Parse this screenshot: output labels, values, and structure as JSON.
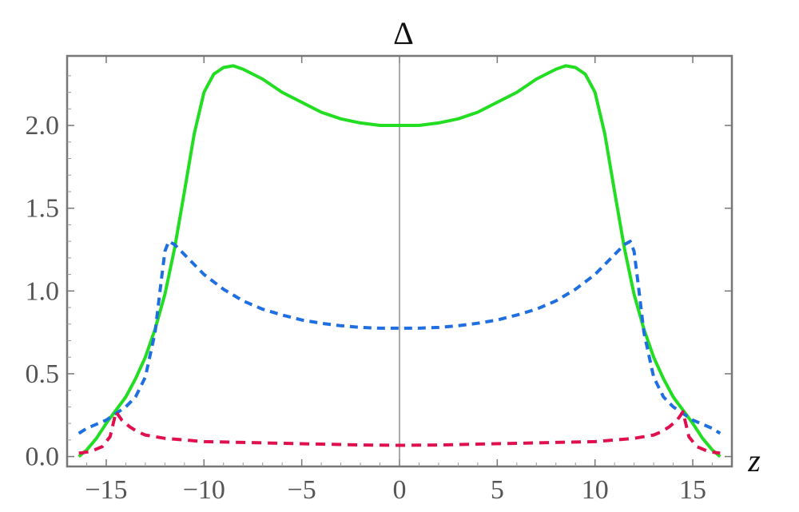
{
  "chart_data": {
    "type": "line",
    "title": "",
    "xlabel": "z",
    "ylabel": "Δ",
    "xlim": [
      -17,
      17
    ],
    "ylim": [
      -0.06,
      2.42
    ],
    "grid": false,
    "x_ticks": [
      -15,
      -10,
      -5,
      0,
      5,
      10,
      15
    ],
    "x_tick_labels": [
      "−15",
      "−10",
      "−5",
      "0",
      "5",
      "10",
      "15"
    ],
    "y_ticks": [
      0.0,
      0.5,
      1.0,
      1.5,
      2.0
    ],
    "y_tick_labels": [
      "0.0",
      "0.5",
      "1.0",
      "1.5",
      "2.0"
    ],
    "series": [
      {
        "style": "solid",
        "color": "#22dd22",
        "points": [
          [
            -16.4,
            0.0
          ],
          [
            -16.0,
            0.04
          ],
          [
            -15.5,
            0.11
          ],
          [
            -15.0,
            0.2
          ],
          [
            -14.5,
            0.28
          ],
          [
            -14.0,
            0.36
          ],
          [
            -13.5,
            0.47
          ],
          [
            -13.0,
            0.6
          ],
          [
            -12.5,
            0.77
          ],
          [
            -12.0,
            0.98
          ],
          [
            -11.5,
            1.26
          ],
          [
            -11.0,
            1.6
          ],
          [
            -10.5,
            1.95
          ],
          [
            -10.0,
            2.2
          ],
          [
            -9.5,
            2.31
          ],
          [
            -9.0,
            2.35
          ],
          [
            -8.5,
            2.36
          ],
          [
            -8.0,
            2.34
          ],
          [
            -7.0,
            2.28
          ],
          [
            -6.0,
            2.2
          ],
          [
            -5.0,
            2.14
          ],
          [
            -4.0,
            2.08
          ],
          [
            -3.0,
            2.04
          ],
          [
            -2.0,
            2.015
          ],
          [
            -1.0,
            2.0
          ],
          [
            0.0,
            2.0
          ],
          [
            1.0,
            2.0
          ],
          [
            2.0,
            2.015
          ],
          [
            3.0,
            2.04
          ],
          [
            4.0,
            2.08
          ],
          [
            5.0,
            2.14
          ],
          [
            6.0,
            2.2
          ],
          [
            7.0,
            2.28
          ],
          [
            8.0,
            2.34
          ],
          [
            8.5,
            2.36
          ],
          [
            9.0,
            2.35
          ],
          [
            9.5,
            2.31
          ],
          [
            10.0,
            2.2
          ],
          [
            10.5,
            1.95
          ],
          [
            11.0,
            1.6
          ],
          [
            11.5,
            1.26
          ],
          [
            12.0,
            0.98
          ],
          [
            12.5,
            0.77
          ],
          [
            13.0,
            0.6
          ],
          [
            13.5,
            0.47
          ],
          [
            14.0,
            0.36
          ],
          [
            14.5,
            0.28
          ],
          [
            15.0,
            0.2
          ],
          [
            15.5,
            0.11
          ],
          [
            16.0,
            0.04
          ],
          [
            16.4,
            0.0
          ]
        ]
      },
      {
        "style": "dashed",
        "color": "#1f6fe0",
        "points": [
          [
            -16.4,
            0.14
          ],
          [
            -16.0,
            0.17
          ],
          [
            -15.0,
            0.22
          ],
          [
            -14.0,
            0.3
          ],
          [
            -13.5,
            0.36
          ],
          [
            -13.0,
            0.48
          ],
          [
            -12.5,
            0.75
          ],
          [
            -12.2,
            1.05
          ],
          [
            -12.0,
            1.24
          ],
          [
            -11.8,
            1.3
          ],
          [
            -11.5,
            1.28
          ],
          [
            -11.0,
            1.22
          ],
          [
            -10.0,
            1.1
          ],
          [
            -9.0,
            1.01
          ],
          [
            -8.0,
            0.94
          ],
          [
            -7.0,
            0.89
          ],
          [
            -6.0,
            0.855
          ],
          [
            -5.0,
            0.825
          ],
          [
            -4.0,
            0.805
          ],
          [
            -3.0,
            0.79
          ],
          [
            -2.0,
            0.78
          ],
          [
            -1.0,
            0.775
          ],
          [
            0.0,
            0.775
          ],
          [
            1.0,
            0.775
          ],
          [
            2.0,
            0.78
          ],
          [
            3.0,
            0.79
          ],
          [
            4.0,
            0.805
          ],
          [
            5.0,
            0.825
          ],
          [
            6.0,
            0.855
          ],
          [
            7.0,
            0.89
          ],
          [
            8.0,
            0.94
          ],
          [
            9.0,
            1.01
          ],
          [
            10.0,
            1.1
          ],
          [
            11.0,
            1.22
          ],
          [
            11.5,
            1.28
          ],
          [
            11.8,
            1.3
          ],
          [
            12.0,
            1.24
          ],
          [
            12.2,
            1.05
          ],
          [
            12.5,
            0.75
          ],
          [
            13.0,
            0.48
          ],
          [
            13.5,
            0.36
          ],
          [
            14.0,
            0.3
          ],
          [
            15.0,
            0.22
          ],
          [
            16.0,
            0.17
          ],
          [
            16.4,
            0.14
          ]
        ]
      },
      {
        "style": "dashed",
        "color": "#e0104f",
        "points": [
          [
            -16.4,
            0.02
          ],
          [
            -15.8,
            0.03
          ],
          [
            -15.2,
            0.06
          ],
          [
            -14.8,
            0.12
          ],
          [
            -14.5,
            0.27
          ],
          [
            -14.2,
            0.22
          ],
          [
            -13.8,
            0.18
          ],
          [
            -13.4,
            0.15
          ],
          [
            -13.0,
            0.13
          ],
          [
            -12.5,
            0.12
          ],
          [
            -12.0,
            0.11
          ],
          [
            -11.0,
            0.1
          ],
          [
            -10.0,
            0.09
          ],
          [
            -8.0,
            0.085
          ],
          [
            -6.0,
            0.08
          ],
          [
            -4.0,
            0.075
          ],
          [
            -2.0,
            0.07
          ],
          [
            0.0,
            0.068
          ],
          [
            2.0,
            0.07
          ],
          [
            4.0,
            0.075
          ],
          [
            6.0,
            0.08
          ],
          [
            8.0,
            0.085
          ],
          [
            10.0,
            0.09
          ],
          [
            11.0,
            0.1
          ],
          [
            12.0,
            0.11
          ],
          [
            12.5,
            0.12
          ],
          [
            13.0,
            0.13
          ],
          [
            13.4,
            0.15
          ],
          [
            13.8,
            0.18
          ],
          [
            14.2,
            0.22
          ],
          [
            14.5,
            0.27
          ],
          [
            14.8,
            0.12
          ],
          [
            15.2,
            0.06
          ],
          [
            15.8,
            0.03
          ],
          [
            16.4,
            0.02
          ]
        ]
      }
    ]
  }
}
